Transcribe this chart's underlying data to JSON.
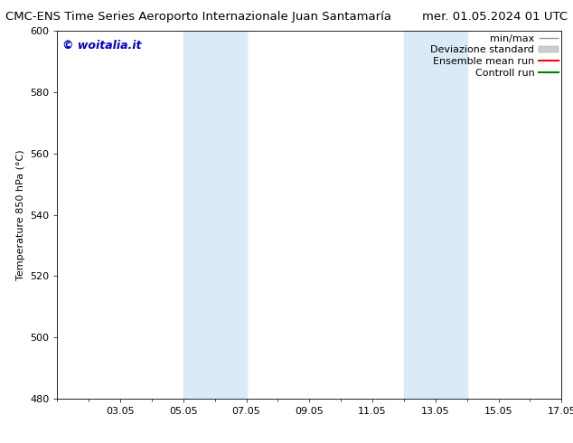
{
  "title_left": "CMC-ENS Time Series Aeroporto Internazionale Juan Santamaría",
  "title_right": "mer. 01.05.2024 01 UTC",
  "ylabel": "Temperature 850 hPa (°C)",
  "watermark": "© woitalia.it",
  "watermark_color": "#0000cc",
  "ylim": [
    480,
    600
  ],
  "yticks": [
    480,
    500,
    520,
    540,
    560,
    580,
    600
  ],
  "xlim": [
    0,
    16
  ],
  "xtick_labels": [
    "03.05",
    "05.05",
    "07.05",
    "09.05",
    "11.05",
    "13.05",
    "15.05",
    "17.05"
  ],
  "xtick_positions": [
    2,
    4,
    6,
    8,
    10,
    12,
    14,
    16
  ],
  "shaded_bands": [
    {
      "x_start": 4,
      "x_end": 6
    },
    {
      "x_start": 11,
      "x_end": 13
    }
  ],
  "band_color": "#daeaf6",
  "background_color": "#ffffff",
  "legend_labels": [
    "min/max",
    "Deviazione standard",
    "Ensemble mean run",
    "Controll run"
  ],
  "legend_line_colors": [
    "#999999",
    "#bbbbbb",
    "#ff0000",
    "#008000"
  ],
  "title_fontsize": 9.5,
  "tick_label_fontsize": 8,
  "ylabel_fontsize": 8,
  "watermark_fontsize": 9,
  "legend_fontsize": 8
}
